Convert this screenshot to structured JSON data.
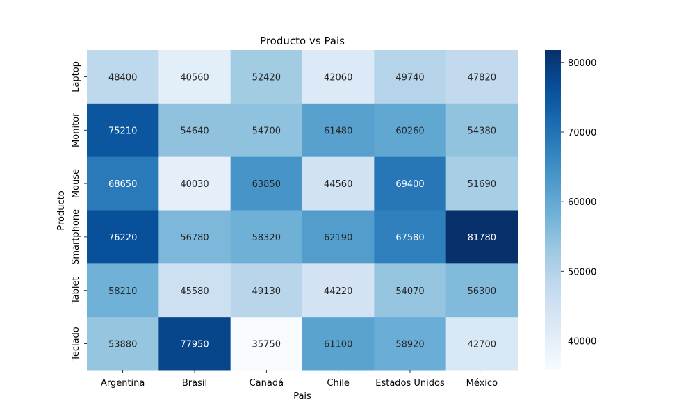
{
  "chart_data": {
    "type": "heatmap",
    "title": "Producto vs Pais",
    "xlabel": "Pais",
    "ylabel": "Producto",
    "x_categories": [
      "Argentina",
      "Brasil",
      "Canadá",
      "Chile",
      "Estados Unidos",
      "México"
    ],
    "y_categories": [
      "Laptop",
      "Monitor",
      "Mouse",
      "Smartphone",
      "Tablet",
      "Teclado"
    ],
    "values": [
      [
        48400,
        40560,
        52420,
        42060,
        49740,
        47820
      ],
      [
        75210,
        54640,
        54700,
        61480,
        60260,
        54380
      ],
      [
        68650,
        40030,
        63850,
        44560,
        69400,
        51690
      ],
      [
        76220,
        56780,
        58320,
        62190,
        67580,
        81780
      ],
      [
        58210,
        45580,
        49130,
        44220,
        54070,
        56300
      ],
      [
        53880,
        77950,
        35750,
        61100,
        58920,
        42700
      ]
    ],
    "colormap": "Blues",
    "vmin": 35750,
    "vmax": 81780,
    "colorbar_ticks": [
      40000,
      50000,
      60000,
      70000,
      80000
    ]
  }
}
